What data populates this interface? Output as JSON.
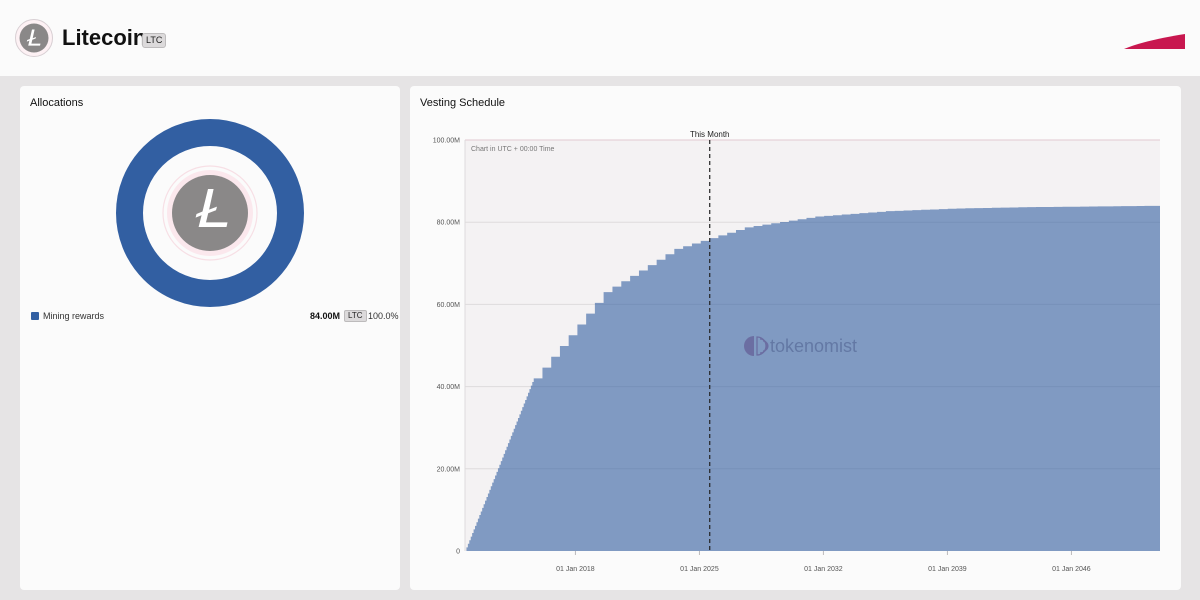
{
  "header": {
    "coin_name": "Litecoin",
    "ticker": "LTC",
    "logo_icon": "litecoin-logo-icon",
    "brand_icon": "brand-swoosh-icon"
  },
  "allocations": {
    "title": "Allocations",
    "items": [
      {
        "label": "Mining rewards",
        "amount": "84.00M",
        "unit": "LTC",
        "percent": "100.0%",
        "color": "#325fa2"
      }
    ]
  },
  "vesting": {
    "title": "Vesting Schedule",
    "timezone_note": "Chart in UTC + 00:00 Time",
    "marker_label": "This Month",
    "watermark": "tokenomist"
  },
  "colors": {
    "accent": "#c8174f",
    "series": "#325fa2",
    "coin_grey": "#8a8888"
  },
  "chart_data": {
    "type": "area",
    "title": "Vesting Schedule",
    "xlabel": "",
    "ylabel": "",
    "xlim": [
      "2011-10-08",
      "2051-01-01"
    ],
    "ylim": [
      0,
      100000000
    ],
    "y_tick_values": [
      0,
      20000000,
      40000000,
      60000000,
      80000000,
      100000000
    ],
    "y_tick_labels": [
      "0",
      "20.00M",
      "40.00M",
      "60.00M",
      "80.00M",
      "100.00M"
    ],
    "x_tick_dates": [
      "2018-01-01",
      "2025-01-01",
      "2032-01-01",
      "2039-01-01",
      "2046-01-01"
    ],
    "x_tick_labels": [
      "01 Jan 2018",
      "01 Jan 2025",
      "01 Jan 2032",
      "01 Jan 2039",
      "01 Jan 2046"
    ],
    "marker_date": "2025-08-01",
    "grid": true,
    "legend": "none",
    "series": [
      {
        "color": "#325fa2",
        "x": [
          "2011-10-08",
          "2015-08-25",
          "2019-08-05",
          "2023-08-02",
          "2027-07-25",
          "2031-07-18",
          "2035-07-12",
          "2039-07-08",
          "2043-07-04",
          "2047-06-28",
          "2051-01-01"
        ],
        "y": [
          0,
          42000000,
          63000000,
          73500000,
          78750000,
          81375000,
          82687500,
          83343750,
          83671875,
          83835938,
          84000000
        ]
      }
    ]
  }
}
